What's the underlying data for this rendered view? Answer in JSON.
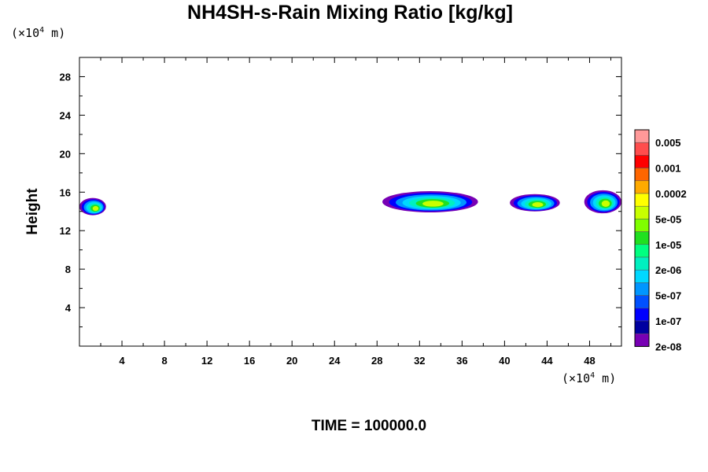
{
  "chart_data": {
    "type": "heatmap",
    "title": "NH4SH-s-Rain Mixing Ratio [kg/kg]",
    "xlabel": "",
    "ylabel": "Height",
    "x_unit": "(×10",
    "x_unit_exp": "4",
    "x_unit_tail": " m)",
    "y_unit": "(×10",
    "y_unit_exp": "4",
    "y_unit_tail": " m)",
    "xlim": [
      0,
      51
    ],
    "ylim": [
      0,
      30
    ],
    "x_ticks": [
      4,
      8,
      12,
      16,
      20,
      24,
      28,
      32,
      36,
      40,
      44,
      48
    ],
    "y_ticks": [
      4,
      8,
      12,
      16,
      20,
      24,
      28
    ],
    "footer": "TIME = 100000.0",
    "colorbar": {
      "labels": [
        "0.005",
        "0.001",
        "0.0002",
        "5e-05",
        "1e-05",
        "2e-06",
        "5e-07",
        "1e-07",
        "2e-08"
      ],
      "colors": [
        "#ff9999",
        "#ff4d4d",
        "#ff0000",
        "#ff6600",
        "#ffaa00",
        "#ffff00",
        "#c8ff00",
        "#80ff00",
        "#20e020",
        "#00ff80",
        "#00f0c0",
        "#00d8ff",
        "#0096ff",
        "#0050ff",
        "#0000ff",
        "#0000a0",
        "#7800b4"
      ]
    },
    "features": [
      {
        "x0": 0.0,
        "x1": 2.5,
        "ymin": 13.6,
        "ymax": 15.4
      },
      {
        "x0": 28.5,
        "x1": 37.5,
        "ymin": 13.9,
        "ymax": 16.1
      },
      {
        "x0": 40.5,
        "x1": 45.2,
        "ymin": 14.0,
        "ymax": 15.8
      },
      {
        "x0": 47.5,
        "x1": 51.0,
        "ymin": 13.8,
        "ymax": 16.2
      }
    ]
  }
}
